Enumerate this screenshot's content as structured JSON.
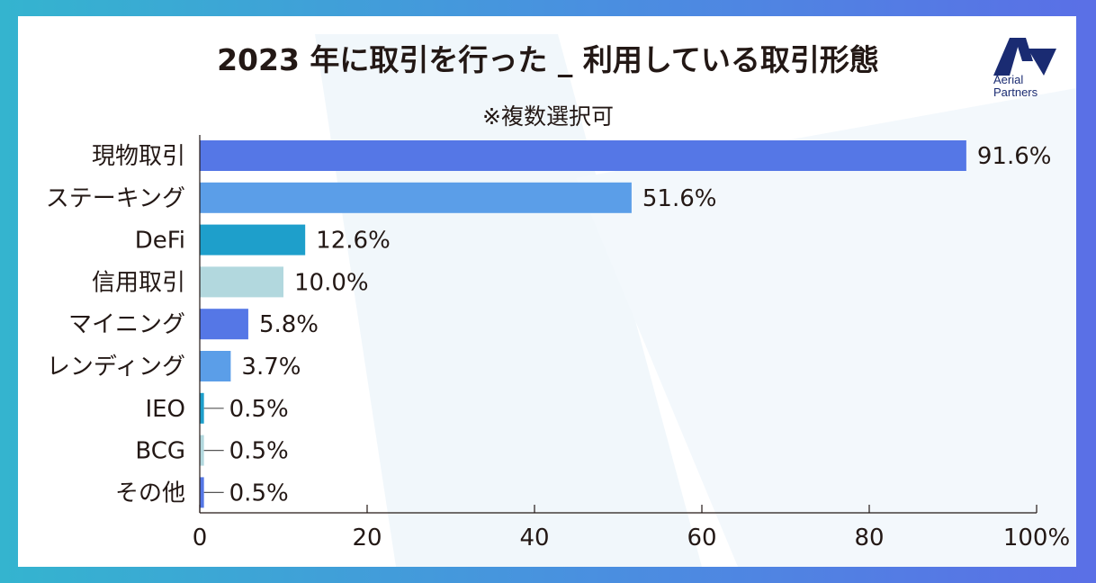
{
  "chart_data": {
    "type": "bar",
    "orientation": "horizontal",
    "title": "2023 年に取引を行った _ 利用している取引形態",
    "subtitle": "※複数選択可",
    "categories": [
      "現物取引",
      "ステーキング",
      "DeFi",
      "信用取引",
      "マイニング",
      "レンディング",
      "IEO",
      "BCG",
      "その他"
    ],
    "values": [
      91.6,
      51.6,
      12.6,
      10.0,
      5.8,
      3.7,
      0.5,
      0.5,
      0.5
    ],
    "value_labels": [
      "91.6%",
      "51.6%",
      "12.6%",
      "10.0%",
      "5.8%",
      "3.7%",
      "0.5%",
      "0.5%",
      "0.5%"
    ],
    "bar_colors": [
      "#5577e6",
      "#5b9ee8",
      "#1e9fcb",
      "#b2d8de",
      "#5577e6",
      "#5b9ee8",
      "#1e9fcb",
      "#b2d8de",
      "#5577e6"
    ],
    "xlim": [
      0,
      100
    ],
    "xticks": [
      0,
      20,
      40,
      60,
      80,
      100
    ],
    "xtick_labels": [
      "0",
      "20",
      "40",
      "60",
      "80",
      "100%"
    ],
    "xlabel": "",
    "ylabel": "",
    "grid": false,
    "legend": "none"
  },
  "logo": {
    "line1": "Aerial",
    "line2": "Partners",
    "color": "#1a2b72"
  }
}
